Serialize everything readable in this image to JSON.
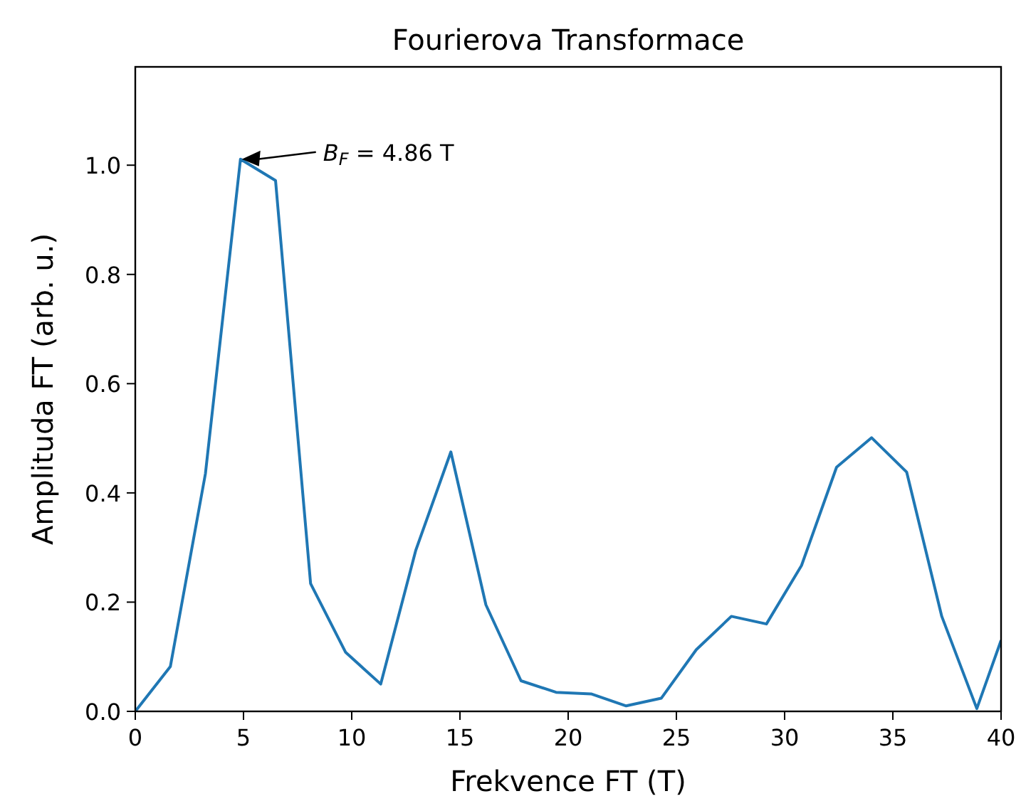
{
  "chart_data": {
    "type": "line",
    "title": "Fourierova Transformace",
    "xlabel": "Frekvence FT (T)",
    "ylabel": "Amplituda FT (arb. u.)",
    "xlim": [
      0,
      40
    ],
    "ylim": [
      0,
      1.18
    ],
    "xticks": [
      0,
      5,
      10,
      15,
      20,
      25,
      30,
      35,
      40
    ],
    "yticks": [
      {
        "value": 0,
        "label": "0.0"
      },
      {
        "value": 0.2,
        "label": "0.2"
      },
      {
        "value": 0.4,
        "label": "0.4"
      },
      {
        "value": 0.6,
        "label": "0.6"
      },
      {
        "value": 0.8,
        "label": "0.8"
      },
      {
        "value": 1,
        "label": "1.0"
      }
    ],
    "grid": false,
    "x": [
      0,
      1.62,
      3.24,
      4.86,
      6.48,
      8.1,
      9.72,
      11.34,
      12.96,
      14.58,
      16.2,
      17.82,
      19.44,
      21.06,
      22.68,
      24.3,
      25.92,
      27.54,
      29.16,
      30.78,
      32.4,
      34.02,
      35.64,
      37.26,
      38.88,
      40
    ],
    "series": [
      {
        "color": "#1f77b4",
        "values": [
          0,
          0.082,
          0.435,
          1.011,
          0.972,
          0.234,
          0.108,
          0.05,
          0.295,
          0.475,
          0.195,
          0.056,
          0.035,
          0.032,
          0.01,
          0.024,
          0.113,
          0.174,
          0.16,
          0.267,
          0.447,
          0.501,
          0.438,
          0.174,
          0.005,
          0.13
        ]
      }
    ],
    "annotations": [
      "B$_{F}$ = 4.86 T"
    ]
  }
}
